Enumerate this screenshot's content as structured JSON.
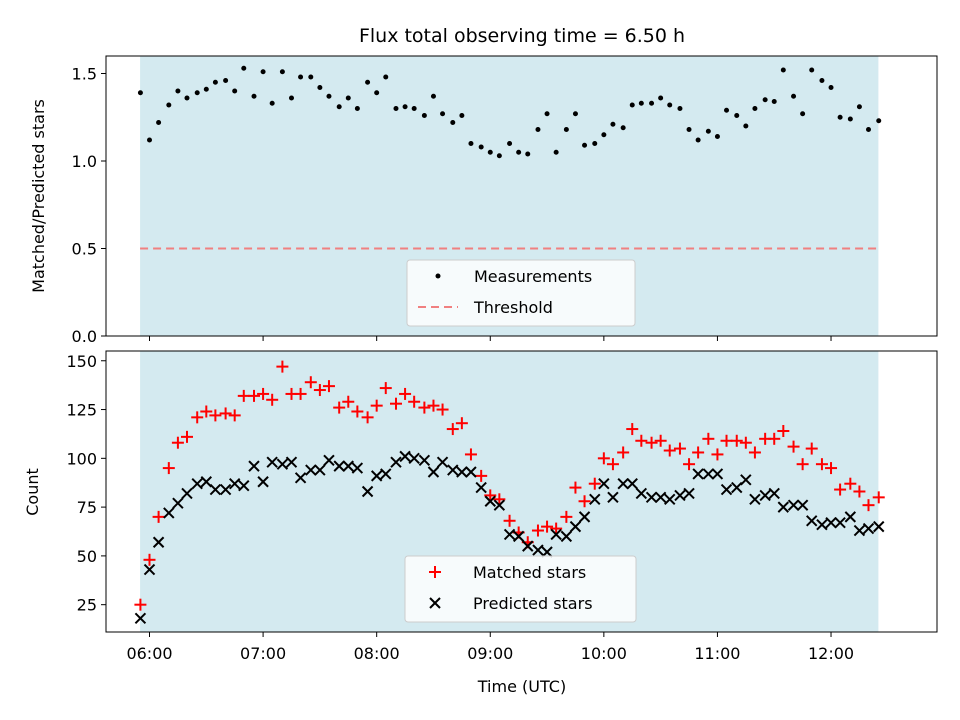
{
  "chart_data": [
    {
      "type": "scatter",
      "title": "Flux total observing time = 6.50 h",
      "xlabel": "",
      "ylabel": "Matched/Predicted stars",
      "ylim": [
        0,
        1.6
      ],
      "yticks": [
        0.0,
        0.5,
        1.0,
        1.5
      ],
      "ytick_labels": [
        "0.0",
        "0.5",
        "1.0",
        "1.5"
      ],
      "xlim_hours": [
        5.617,
        12.933
      ],
      "observing_window_hours": [
        5.917,
        12.417
      ],
      "observing_window_color": "#d4eaf0",
      "legend": {
        "placement": "lower-center",
        "entries": [
          "Measurements",
          "Threshold"
        ]
      },
      "threshold": {
        "name": "Threshold",
        "value": 0.5,
        "color": "#f08080",
        "style": "dashed"
      },
      "series": [
        {
          "name": "Measurements",
          "color": "#000000",
          "marker": "dot",
          "x": [
            5.92,
            6.0,
            6.08,
            6.17,
            6.25,
            6.33,
            6.42,
            6.5,
            6.58,
            6.67,
            6.75,
            6.83,
            6.92,
            7.0,
            7.08,
            7.17,
            7.25,
            7.33,
            7.42,
            7.5,
            7.58,
            7.67,
            7.75,
            7.83,
            7.92,
            8.0,
            8.08,
            8.17,
            8.25,
            8.33,
            8.42,
            8.5,
            8.58,
            8.67,
            8.75,
            8.83,
            8.92,
            9.0,
            9.08,
            9.17,
            9.25,
            9.33,
            9.42,
            9.5,
            9.58,
            9.67,
            9.75,
            9.83,
            9.92,
            10.0,
            10.08,
            10.17,
            10.25,
            10.33,
            10.42,
            10.5,
            10.58,
            10.67,
            10.75,
            10.83,
            10.92,
            11.0,
            11.08,
            11.17,
            11.25,
            11.33,
            11.42,
            11.5,
            11.58,
            11.67,
            11.75,
            11.83,
            11.92,
            12.0,
            12.08,
            12.17,
            12.25,
            12.33,
            12.42
          ],
          "y": [
            1.39,
            1.12,
            1.22,
            1.32,
            1.4,
            1.36,
            1.39,
            1.41,
            1.45,
            1.46,
            1.4,
            1.53,
            1.37,
            1.51,
            1.33,
            1.51,
            1.36,
            1.48,
            1.48,
            1.42,
            1.37,
            1.31,
            1.36,
            1.3,
            1.45,
            1.39,
            1.48,
            1.3,
            1.31,
            1.3,
            1.26,
            1.37,
            1.27,
            1.22,
            1.26,
            1.1,
            1.08,
            1.05,
            1.03,
            1.1,
            1.05,
            1.04,
            1.18,
            1.27,
            1.05,
            1.18,
            1.27,
            1.09,
            1.1,
            1.15,
            1.21,
            1.19,
            1.32,
            1.33,
            1.33,
            1.36,
            1.32,
            1.3,
            1.18,
            1.12,
            1.17,
            1.14,
            1.29,
            1.26,
            1.2,
            1.3,
            1.35,
            1.34,
            1.52,
            1.37,
            1.27,
            1.52,
            1.46,
            1.42,
            1.25,
            1.24,
            1.31,
            1.18,
            1.23
          ]
        }
      ]
    },
    {
      "type": "scatter",
      "title": "",
      "xlabel": "Time (UTC)",
      "ylabel": "Count",
      "ylim": [
        11,
        155
      ],
      "yticks": [
        25,
        50,
        75,
        100,
        125,
        150
      ],
      "ytick_labels": [
        "25",
        "50",
        "75",
        "100",
        "125",
        "150"
      ],
      "xticks_hours": [
        6,
        7,
        8,
        9,
        10,
        11,
        12
      ],
      "xtick_labels": [
        "06:00",
        "07:00",
        "08:00",
        "09:00",
        "10:00",
        "11:00",
        "12:00"
      ],
      "xlim_hours": [
        5.617,
        12.933
      ],
      "observing_window_hours": [
        5.917,
        12.417
      ],
      "observing_window_color": "#d4eaf0",
      "legend": {
        "placement": "lower-center",
        "entries": [
          "Matched stars",
          "Predicted stars"
        ]
      },
      "series": [
        {
          "name": "Matched stars",
          "color": "#ff0000",
          "marker": "plus",
          "x": [
            5.92,
            6.0,
            6.08,
            6.17,
            6.25,
            6.33,
            6.42,
            6.5,
            6.58,
            6.67,
            6.75,
            6.83,
            6.92,
            7.0,
            7.08,
            7.17,
            7.25,
            7.33,
            7.42,
            7.5,
            7.58,
            7.67,
            7.75,
            7.83,
            7.92,
            8.0,
            8.08,
            8.17,
            8.25,
            8.33,
            8.42,
            8.5,
            8.58,
            8.67,
            8.75,
            8.83,
            8.92,
            9.0,
            9.08,
            9.17,
            9.25,
            9.33,
            9.42,
            9.5,
            9.58,
            9.67,
            9.75,
            9.83,
            9.92,
            10.0,
            10.08,
            10.17,
            10.25,
            10.33,
            10.42,
            10.5,
            10.58,
            10.67,
            10.75,
            10.83,
            10.92,
            11.0,
            11.08,
            11.17,
            11.25,
            11.33,
            11.42,
            11.5,
            11.58,
            11.67,
            11.75,
            11.83,
            11.92,
            12.0,
            12.08,
            12.17,
            12.25,
            12.33,
            12.42
          ],
          "y": [
            25,
            48,
            70,
            95,
            108,
            111,
            121,
            124,
            122,
            123,
            122,
            132,
            132,
            133,
            130,
            147,
            133,
            133,
            139,
            135,
            137,
            126,
            129,
            124,
            121,
            127,
            136,
            128,
            133,
            129,
            126,
            127,
            125,
            115,
            118,
            102,
            91,
            81,
            79,
            68,
            62,
            57,
            63,
            65,
            64,
            70,
            85,
            78,
            87,
            100,
            97,
            103,
            115,
            109,
            108,
            109,
            104,
            105,
            97,
            103,
            110,
            102,
            109,
            109,
            108,
            103,
            110,
            110,
            114,
            106,
            97,
            105,
            97,
            95,
            84,
            87,
            83,
            76,
            80
          ]
        },
        {
          "name": "Predicted stars",
          "color": "#000000",
          "marker": "x",
          "x": [
            5.92,
            6.0,
            6.08,
            6.17,
            6.25,
            6.33,
            6.42,
            6.5,
            6.58,
            6.67,
            6.75,
            6.83,
            6.92,
            7.0,
            7.08,
            7.17,
            7.25,
            7.33,
            7.42,
            7.5,
            7.58,
            7.67,
            7.75,
            7.83,
            7.92,
            8.0,
            8.08,
            8.17,
            8.25,
            8.33,
            8.42,
            8.5,
            8.58,
            8.67,
            8.75,
            8.83,
            8.92,
            9.0,
            9.08,
            9.17,
            9.25,
            9.33,
            9.42,
            9.5,
            9.58,
            9.67,
            9.75,
            9.83,
            9.92,
            10.0,
            10.08,
            10.17,
            10.25,
            10.33,
            10.42,
            10.5,
            10.58,
            10.67,
            10.75,
            10.83,
            10.92,
            11.0,
            11.08,
            11.17,
            11.25,
            11.33,
            11.42,
            11.5,
            11.58,
            11.67,
            11.75,
            11.83,
            11.92,
            12.0,
            12.08,
            12.17,
            12.25,
            12.33,
            12.42
          ],
          "y": [
            18,
            43,
            57,
            72,
            77,
            82,
            87,
            88,
            84,
            84,
            87,
            86,
            96,
            88,
            98,
            97,
            98,
            90,
            94,
            94,
            99,
            96,
            96,
            95,
            83,
            91,
            92,
            98,
            101,
            100,
            99,
            93,
            98,
            94,
            93,
            93,
            85,
            78,
            76,
            61,
            60,
            55,
            53,
            52,
            61,
            60,
            65,
            70,
            79,
            87,
            80,
            87,
            87,
            82,
            80,
            80,
            79,
            81,
            82,
            92,
            92,
            92,
            84,
            85,
            89,
            79,
            81,
            82,
            75,
            76,
            76,
            68,
            66,
            67,
            67,
            70,
            63,
            64,
            65
          ]
        }
      ]
    }
  ]
}
